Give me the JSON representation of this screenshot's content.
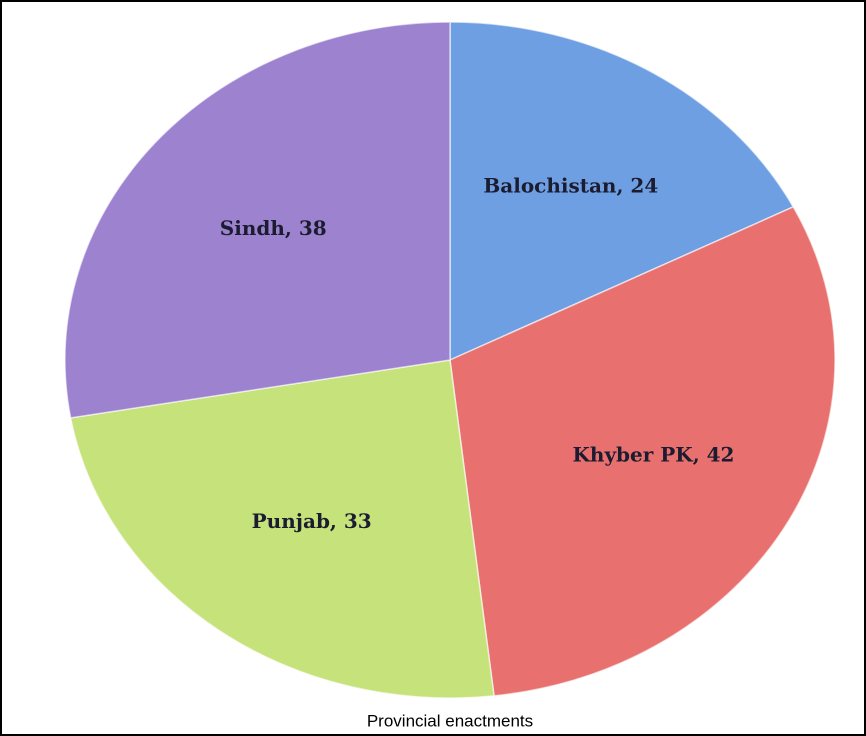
{
  "chart_data": {
    "type": "pie",
    "title": "Provincial enactments",
    "categories": [
      "Balochistan",
      "Khyber PK",
      "Punjab",
      "Sindh"
    ],
    "values": [
      24,
      42,
      33,
      38
    ],
    "value_labels": [
      "Balochistan, 24",
      "Khyber PK, 42",
      "Punjab, 33",
      "Sindh, 38"
    ],
    "colors": [
      "#6f9fe3",
      "#e8706e",
      "#c6e27a",
      "#9c82cf"
    ]
  }
}
